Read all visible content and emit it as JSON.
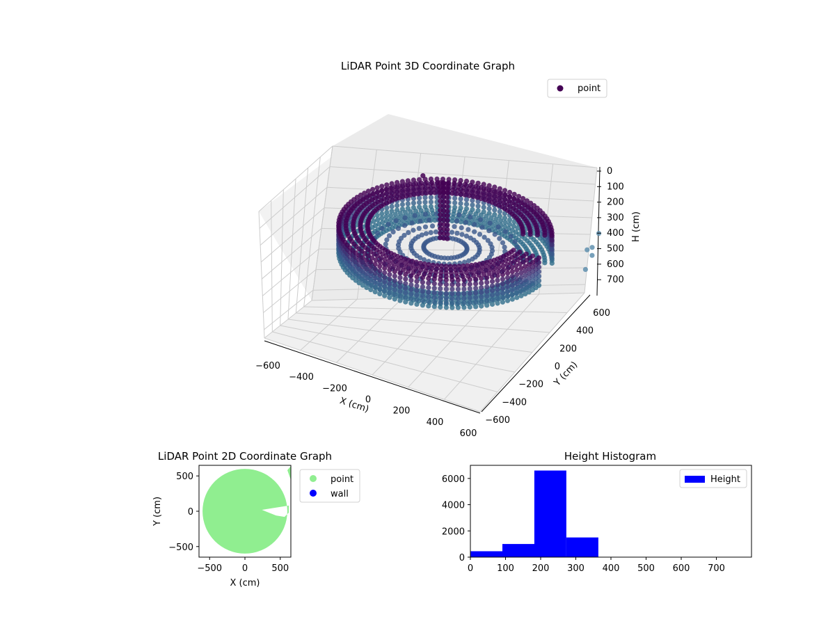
{
  "colors": {
    "point_2d": "#90ee90",
    "wall_2d": "#0000ff",
    "histogram": "#0000ff",
    "scatter3d_dark": "#440154",
    "scatter3d_mid": "#3b528b",
    "scatter3d_light": "#21918c",
    "pane": "#f2f2f2",
    "grid": "#cccccc"
  },
  "chart_data": [
    {
      "type": "scatter",
      "projection": "3d",
      "title": "LiDAR Point 3D Coordinate Graph",
      "xlabel": "X (cm)",
      "ylabel": "Y (cm)",
      "zlabel": "H (cm)",
      "xlim": [
        -600,
        600
      ],
      "ylim": [
        -600,
        600
      ],
      "zlim": [
        0,
        750
      ],
      "z_inverted": true,
      "x_ticks": [
        "−600",
        "−400",
        "−200",
        "0",
        "200",
        "400",
        "600"
      ],
      "y_ticks": [
        "−600",
        "−400",
        "−200",
        "0",
        "200",
        "400",
        "600"
      ],
      "z_ticks": [
        "0",
        "100",
        "200",
        "300",
        "400",
        "500",
        "600",
        "700"
      ],
      "legend": {
        "position": "upper-right",
        "entries": [
          "point"
        ]
      },
      "series": [
        {
          "name": "point",
          "shape": "ring",
          "radius_range": [
            430,
            600
          ],
          "height_range": [
            200,
            320
          ],
          "gap_angle_deg": [
            -10,
            25
          ]
        },
        {
          "name": "point",
          "shape": "column",
          "x": -40,
          "y": 160,
          "height_range": [
            120,
            360
          ]
        },
        {
          "name": "point",
          "shape": "isolated",
          "x": [
            -150,
            560,
            580,
            600,
            610,
            570
          ],
          "y": [
            120,
            20,
            60,
            -40,
            100,
            -80
          ],
          "h": [
            110,
            460,
            520,
            400,
            380,
            540
          ]
        }
      ]
    },
    {
      "type": "scatter",
      "title": "LiDAR Point 2D Coordinate Graph",
      "xlabel": "X (cm)",
      "ylabel": "Y (cm)",
      "xlim": [
        -650,
        650
      ],
      "ylim": [
        -650,
        650
      ],
      "x_ticks": [
        "−500",
        "0",
        "500"
      ],
      "y_ticks": [
        "−500",
        "0",
        "500"
      ],
      "legend": {
        "position": "outside-right",
        "entries": [
          "point",
          "wall"
        ]
      },
      "series": [
        {
          "name": "point",
          "shape": "filled-disc",
          "center": [
            0,
            0
          ],
          "radius": 600,
          "notch": [
            [
              240,
              20
            ],
            [
              620,
              80
            ],
            [
              620,
              -20
            ],
            [
              560,
              -80
            ],
            [
              440,
              -60
            ]
          ]
        },
        {
          "name": "wall",
          "x": [],
          "y": []
        }
      ]
    },
    {
      "type": "bar",
      "histogram": true,
      "title": "Height Histogram",
      "xlabel": "",
      "ylabel": "",
      "xlim": [
        0,
        800
      ],
      "ylim": [
        0,
        7000
      ],
      "x_ticks": [
        "0",
        "100",
        "200",
        "300",
        "400",
        "500",
        "600",
        "700"
      ],
      "y_ticks": [
        "0",
        "2000",
        "4000",
        "6000"
      ],
      "legend": {
        "position": "upper-right",
        "entries": [
          "Height"
        ]
      },
      "bin_edges": [
        0,
        91,
        182,
        273,
        364,
        455,
        546,
        637,
        728,
        800
      ],
      "values": [
        450,
        1000,
        6600,
        1500,
        0,
        0,
        0,
        0,
        0
      ]
    }
  ]
}
